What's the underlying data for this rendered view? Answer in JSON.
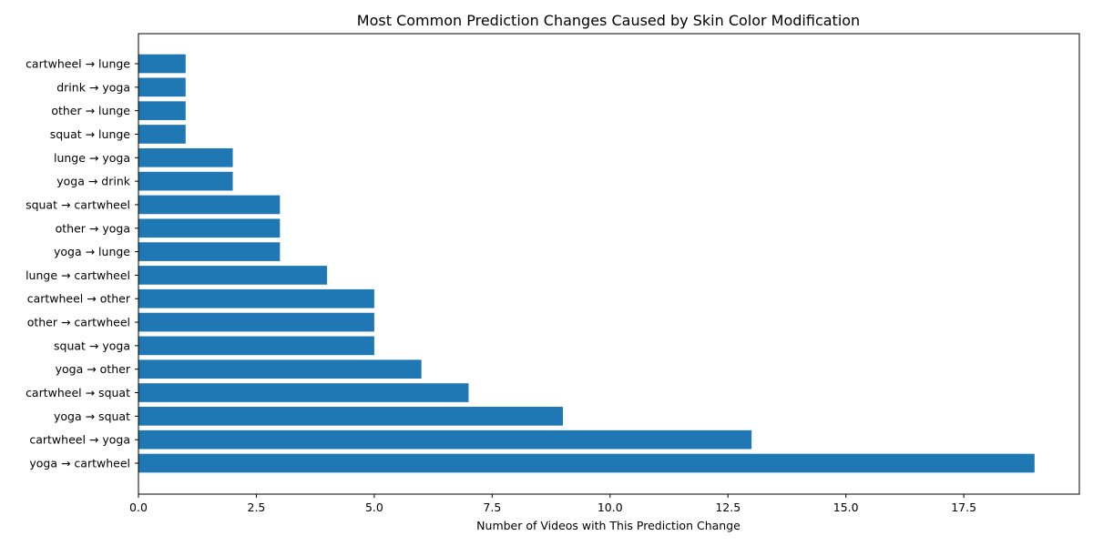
{
  "chart_data": {
    "type": "bar",
    "orientation": "horizontal",
    "title": "Most Common Prediction Changes Caused by Skin Color Modification",
    "xlabel": "Number of Videos with This Prediction Change",
    "ylabel": "",
    "xlim": [
      0,
      19.95
    ],
    "xticks": [
      "0.0",
      "2.5",
      "5.0",
      "7.5",
      "10.0",
      "12.5",
      "15.0",
      "17.5"
    ],
    "xtick_values": [
      0,
      2.5,
      5,
      7.5,
      10,
      12.5,
      15,
      17.5
    ],
    "bar_color": "#1f77b4",
    "grid": false,
    "categories": [
      "yoga → cartwheel",
      "cartwheel → yoga",
      "yoga → squat",
      "cartwheel → squat",
      "yoga → other",
      "squat → yoga",
      "other → cartwheel",
      "cartwheel → other",
      "lunge → cartwheel",
      "yoga → lunge",
      "other → yoga",
      "squat → cartwheel",
      "yoga → drink",
      "lunge → yoga",
      "squat → lunge",
      "other → lunge",
      "drink → yoga",
      "cartwheel → lunge"
    ],
    "values": [
      19,
      13,
      9,
      7,
      6,
      5,
      5,
      5,
      4,
      3,
      3,
      3,
      2,
      2,
      1,
      1,
      1,
      1
    ]
  }
}
